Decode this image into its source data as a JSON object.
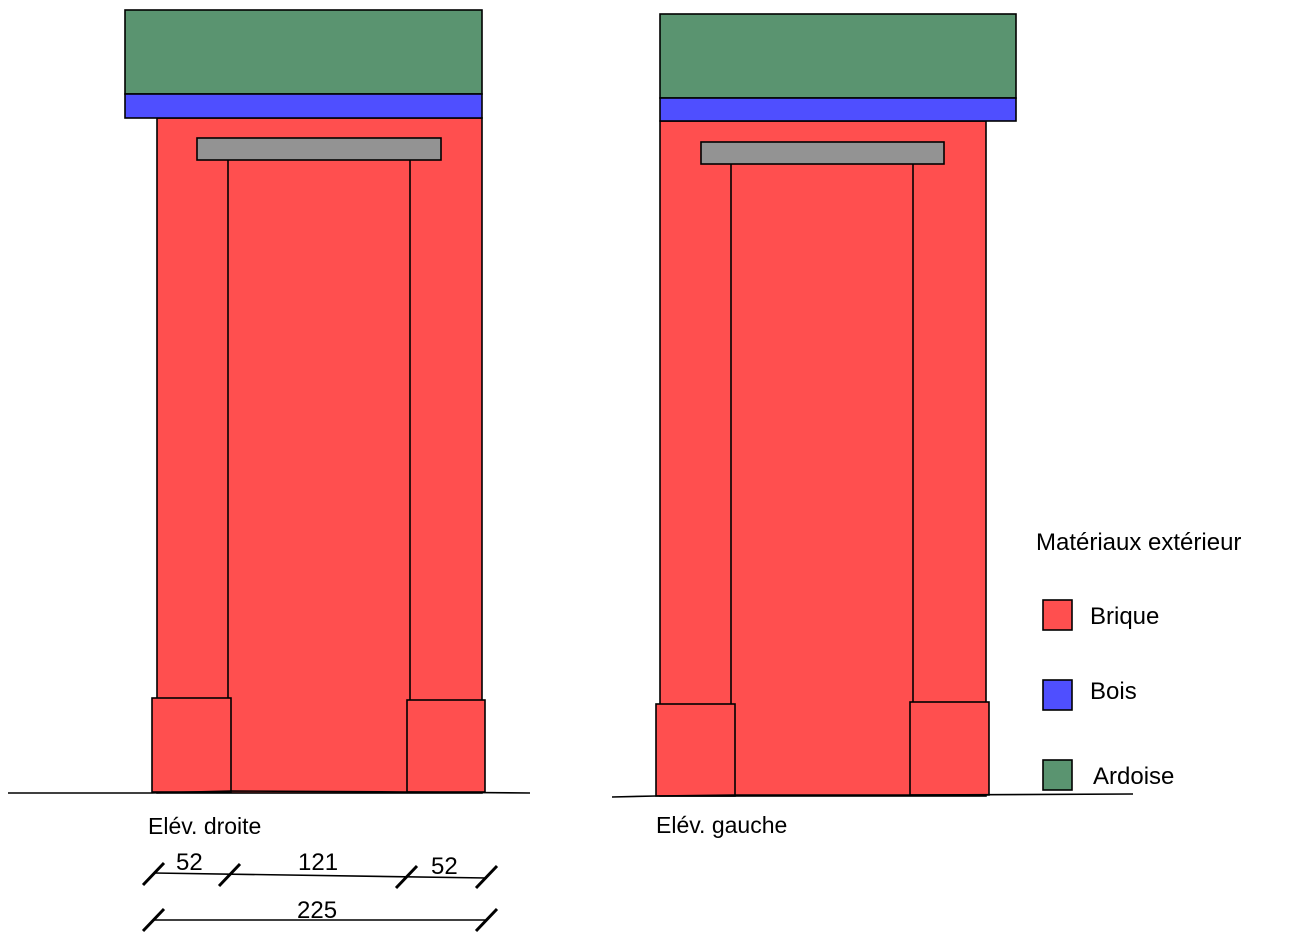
{
  "materials": {
    "brique": "#ff4f4f",
    "bois": "#4f4fff",
    "ardoise": "#5a9470",
    "lintel": "#939393"
  },
  "elevations": {
    "right_label": "Elév. droite",
    "left_label": "Elév. gauche"
  },
  "dimensions": {
    "pier_left": "52",
    "opening": "121",
    "pier_right": "52",
    "total": "225"
  },
  "legend": {
    "title": "Matériaux extérieur",
    "items": [
      {
        "label": "Brique",
        "color": "#ff4f4f"
      },
      {
        "label": "Bois",
        "color": "#4f4fff"
      },
      {
        "label": "Ardoise",
        "color": "#5a9470"
      }
    ]
  }
}
